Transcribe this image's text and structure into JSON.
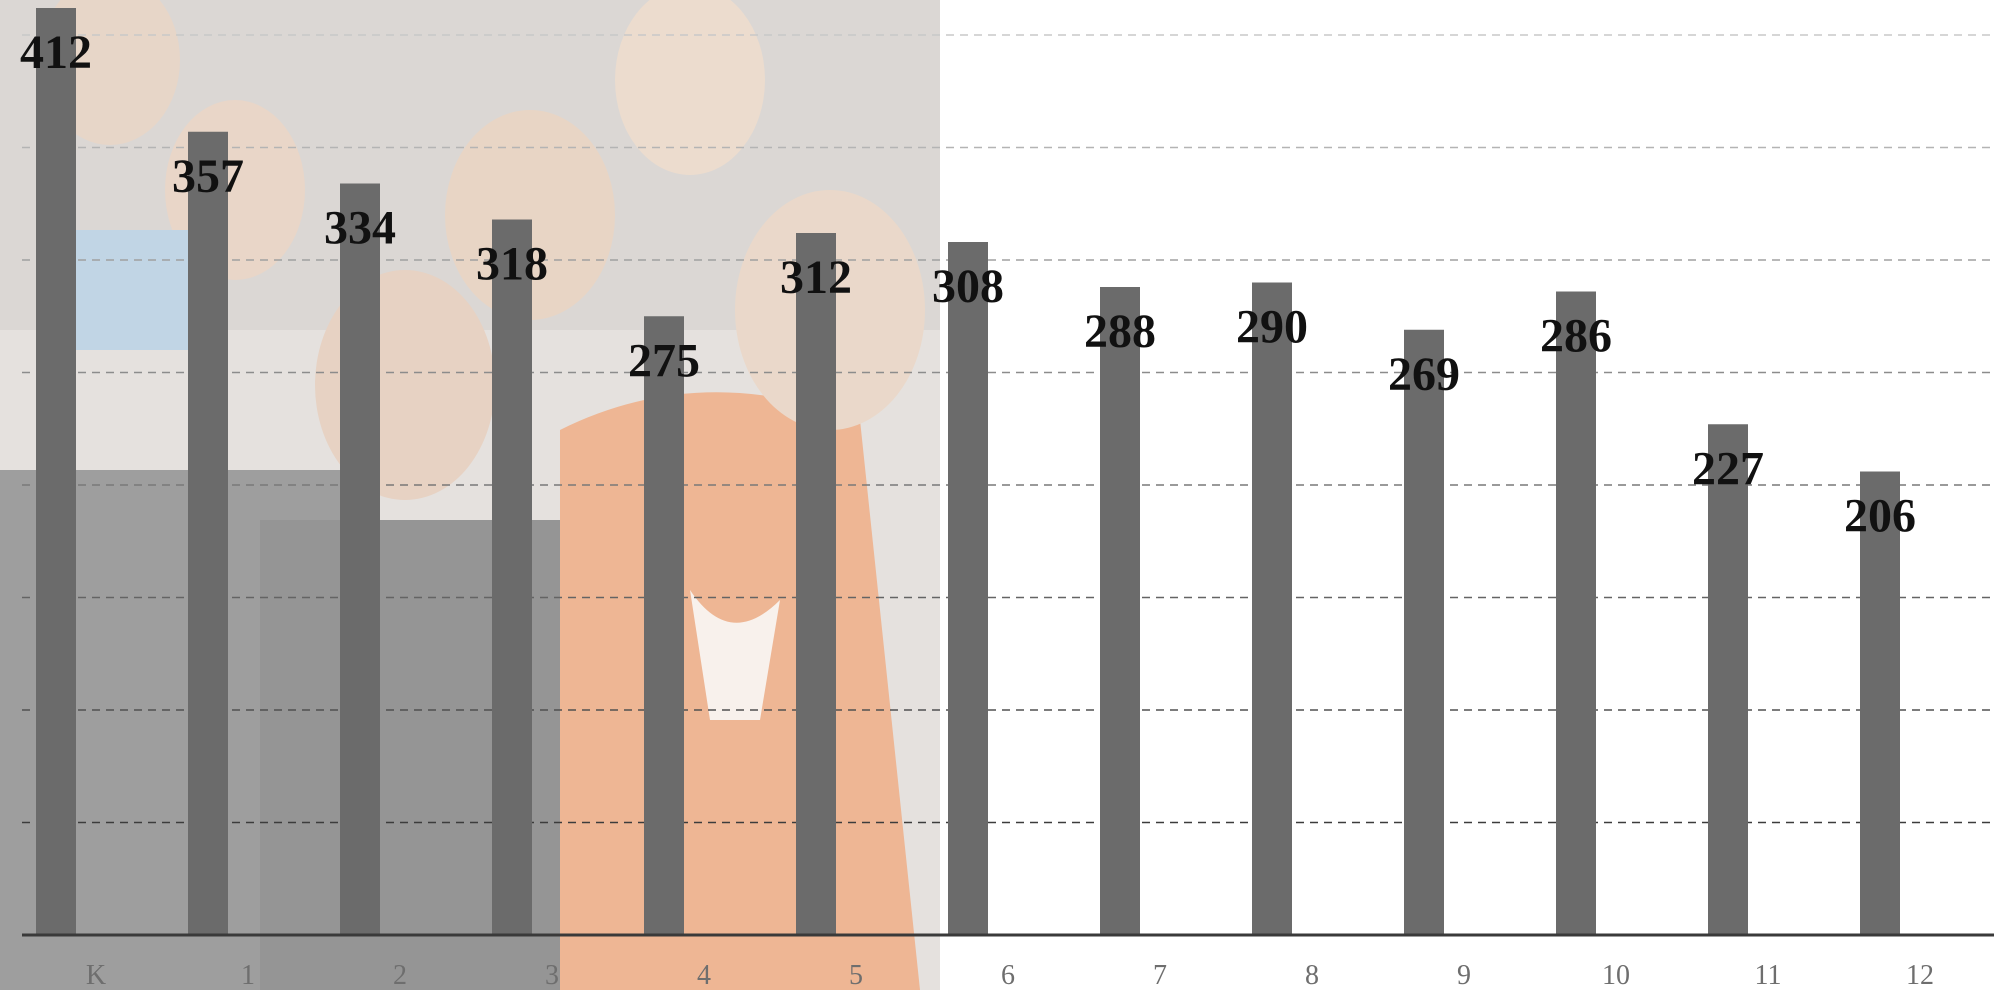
{
  "chart_data": {
    "type": "bar",
    "title": "",
    "xlabel": "",
    "ylabel": "",
    "categories": [
      "K",
      "1",
      "2",
      "3",
      "4",
      "5",
      "6",
      "7",
      "8",
      "9",
      "10",
      "11",
      "12"
    ],
    "values": [
      412,
      357,
      334,
      318,
      275,
      312,
      308,
      288,
      290,
      269,
      286,
      227,
      206
    ],
    "ylim": [
      0,
      400
    ],
    "grid": true,
    "legend": "none",
    "data_labels": true,
    "background": "photo of students seated in bleachers, faded, behind left portion of chart"
  },
  "colors": {
    "bar": "#6b6b6b",
    "label": "#111111",
    "axis": "#3a3a3a",
    "tick": "#6e6e6e",
    "photo_skin": "#d9b99e",
    "photo_hoodie": "#e07a3c",
    "photo_dark": "#5a5a5a",
    "photo_light": "#c9c9c9"
  }
}
